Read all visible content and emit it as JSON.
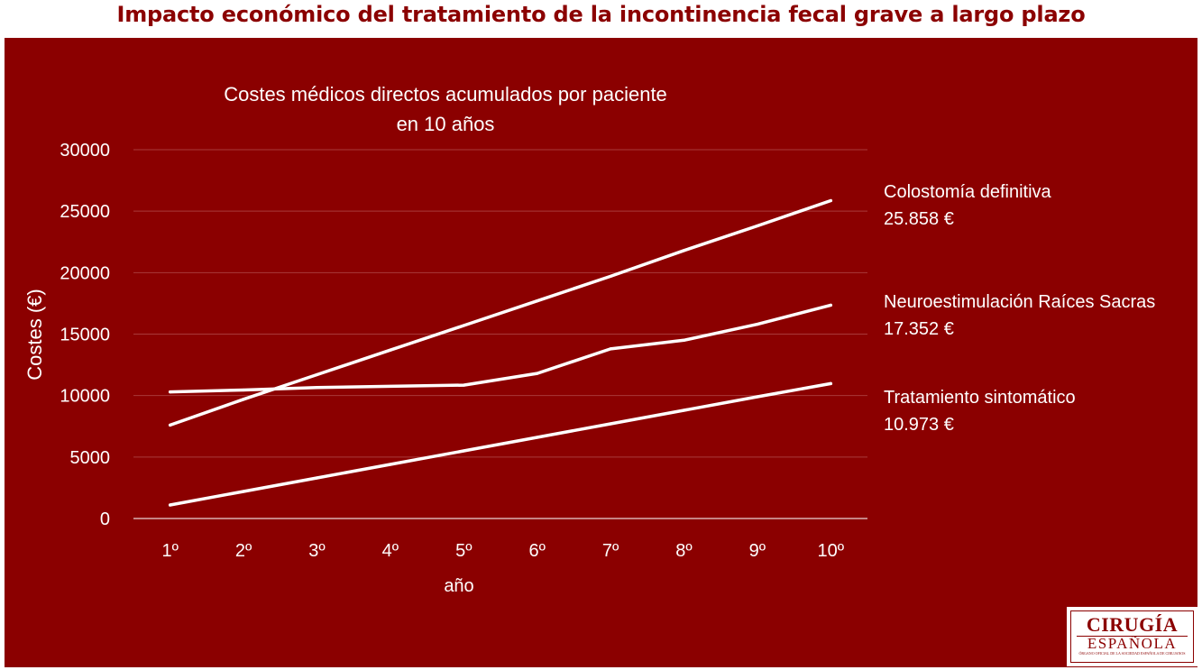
{
  "page": {
    "title": "Impacto económico del tratamiento de la incontinencia fecal grave a largo plazo"
  },
  "colors": {
    "title": "#8b0000",
    "panel": "#8b0000",
    "line": "#ffffff",
    "grid": "#a83a3a",
    "axis": "#d9b0b0"
  },
  "chart_data": {
    "type": "line",
    "title_lines": [
      "Costes médicos directos acumulados por paciente",
      "en 10 años"
    ],
    "xlabel": "año",
    "ylabel": "Costes (€)",
    "categories": [
      "1º",
      "2º",
      "3º",
      "4º",
      "5º",
      "6º",
      "7º",
      "8º",
      "9º",
      "10º"
    ],
    "ylim": [
      0,
      30000
    ],
    "yticks": [
      0,
      5000,
      10000,
      15000,
      20000,
      25000,
      30000
    ],
    "grid": true,
    "series": [
      {
        "name": "Colostomía definitiva",
        "value_label": "25.858 €",
        "values": [
          7600,
          9700,
          11700,
          13700,
          15700,
          17700,
          19700,
          21800,
          23800,
          25858
        ]
      },
      {
        "name": "Neuroestimulación Raíces Sacras",
        "value_label": "17.352 €",
        "values": [
          10300,
          10450,
          10650,
          10750,
          10850,
          11800,
          13800,
          14500,
          15800,
          17352
        ]
      },
      {
        "name": "Tratamiento sintomático",
        "value_label": "10.973 €",
        "values": [
          1100,
          2200,
          3300,
          4400,
          5500,
          6600,
          7700,
          8800,
          9900,
          10973
        ]
      }
    ]
  },
  "logo": {
    "line1": "CIRUGÍA",
    "line2": "ESPAÑOLA",
    "line3": "ÓRGANO OFICIAL DE LA SOCIEDAD ESPAÑOLA DE CIRUJANOS"
  }
}
